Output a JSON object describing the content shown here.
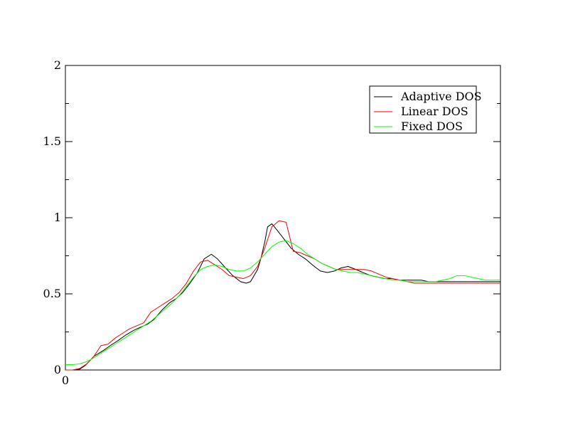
{
  "chart_data": {
    "type": "line",
    "title": "",
    "xlabel": "",
    "ylabel": "",
    "xlim": [
      0,
      1
    ],
    "ylim": [
      0,
      2
    ],
    "y_ticks": [
      0,
      0.5,
      1,
      1.5,
      2
    ],
    "y_tick_labels": [
      "0",
      "0.5",
      "1",
      "1.5",
      "2"
    ],
    "x_ticks": [
      0
    ],
    "x_tick_labels": [
      "0"
    ],
    "grid": false,
    "legend_position": "top-right",
    "series": [
      {
        "name": "Adaptive DOS",
        "color": "#000000",
        "x": [
          0.0,
          0.0164,
          0.0327,
          0.0458,
          0.0655,
          0.0884,
          0.1031,
          0.1195,
          0.1391,
          0.1571,
          0.1718,
          0.1882,
          0.2029,
          0.2209,
          0.2389,
          0.2553,
          0.27,
          0.2864,
          0.3036,
          0.3191,
          0.3355,
          0.3494,
          0.3682,
          0.3846,
          0.4026,
          0.4156,
          0.4255,
          0.4419,
          0.4501,
          0.4582,
          0.4648,
          0.4746,
          0.4861,
          0.5025,
          0.5188,
          0.5352,
          0.5516,
          0.5679,
          0.5859,
          0.6023,
          0.6187,
          0.6334,
          0.6498,
          0.6678,
          0.6841,
          0.7021,
          0.7185,
          0.7349,
          0.7512,
          0.7676,
          0.784,
          0.802,
          0.8183,
          0.8347,
          0.8511,
          0.8674,
          0.8838,
          0.9002,
          0.9165,
          0.9329,
          0.9509,
          0.9673,
          0.9836,
          1.0
        ],
        "values": [
          0.0,
          0.0,
          0.005,
          0.03,
          0.09,
          0.13,
          0.16,
          0.19,
          0.23,
          0.26,
          0.28,
          0.3,
          0.33,
          0.39,
          0.44,
          0.47,
          0.51,
          0.57,
          0.64,
          0.73,
          0.76,
          0.73,
          0.67,
          0.62,
          0.58,
          0.57,
          0.58,
          0.66,
          0.74,
          0.84,
          0.94,
          0.96,
          0.92,
          0.86,
          0.8,
          0.76,
          0.73,
          0.69,
          0.65,
          0.64,
          0.65,
          0.67,
          0.68,
          0.66,
          0.64,
          0.62,
          0.61,
          0.6,
          0.6,
          0.59,
          0.59,
          0.59,
          0.59,
          0.58,
          0.58,
          0.58,
          0.58,
          0.58,
          0.58,
          0.58,
          0.58,
          0.58,
          0.58,
          0.58
        ]
      },
      {
        "name": "Linear DOS",
        "color": "#ff0000",
        "x": [
          0.0,
          0.0164,
          0.0327,
          0.0491,
          0.0655,
          0.0818,
          0.0982,
          0.1146,
          0.1309,
          0.1473,
          0.1637,
          0.18,
          0.1964,
          0.2128,
          0.2291,
          0.2455,
          0.2619,
          0.2782,
          0.2946,
          0.311,
          0.3273,
          0.3437,
          0.3601,
          0.3764,
          0.3928,
          0.4092,
          0.4255,
          0.4419,
          0.4582,
          0.4746,
          0.491,
          0.5073,
          0.5237,
          0.5401,
          0.5564,
          0.5728,
          0.5892,
          0.6055,
          0.6219,
          0.6383,
          0.6546,
          0.671,
          0.6874,
          0.7037,
          0.7201,
          0.7365,
          0.7528,
          0.7692,
          0.7856,
          0.802,
          0.8183,
          0.8347,
          0.8511,
          0.8674,
          0.8838,
          0.9002,
          0.9165,
          0.9329,
          0.9493,
          0.9656,
          0.982,
          1.0
        ],
        "values": [
          0.0,
          0.0,
          0.01,
          0.04,
          0.09,
          0.16,
          0.17,
          0.21,
          0.24,
          0.27,
          0.29,
          0.31,
          0.38,
          0.41,
          0.44,
          0.47,
          0.51,
          0.57,
          0.65,
          0.71,
          0.72,
          0.69,
          0.66,
          0.62,
          0.61,
          0.6,
          0.62,
          0.68,
          0.8,
          0.94,
          0.98,
          0.97,
          0.78,
          0.77,
          0.75,
          0.73,
          0.7,
          0.68,
          0.66,
          0.66,
          0.66,
          0.66,
          0.66,
          0.65,
          0.63,
          0.61,
          0.6,
          0.59,
          0.58,
          0.57,
          0.57,
          0.57,
          0.57,
          0.57,
          0.57,
          0.57,
          0.57,
          0.57,
          0.57,
          0.57,
          0.57,
          0.57
        ]
      },
      {
        "name": "Fixed DOS",
        "color": "#00ff00",
        "x": [
          0.0,
          0.0164,
          0.0327,
          0.0491,
          0.0655,
          0.0818,
          0.0982,
          0.1146,
          0.1309,
          0.1473,
          0.1637,
          0.18,
          0.1964,
          0.2128,
          0.2291,
          0.2455,
          0.2619,
          0.2782,
          0.2946,
          0.311,
          0.3273,
          0.3437,
          0.3601,
          0.3764,
          0.3928,
          0.4092,
          0.4255,
          0.4419,
          0.4582,
          0.4746,
          0.491,
          0.5073,
          0.5237,
          0.5401,
          0.5564,
          0.5728,
          0.5892,
          0.6055,
          0.6219,
          0.6383,
          0.6546,
          0.671,
          0.6874,
          0.7037,
          0.7201,
          0.7365,
          0.7528,
          0.7692,
          0.7856,
          0.802,
          0.8183,
          0.8347,
          0.8511,
          0.8674,
          0.8838,
          0.9002,
          0.9165,
          0.9329,
          0.9493,
          0.9656,
          0.982,
          1.0
        ],
        "values": [
          0.035,
          0.035,
          0.04,
          0.055,
          0.08,
          0.11,
          0.14,
          0.17,
          0.2,
          0.23,
          0.26,
          0.29,
          0.32,
          0.36,
          0.4,
          0.44,
          0.49,
          0.55,
          0.61,
          0.66,
          0.68,
          0.69,
          0.68,
          0.66,
          0.65,
          0.65,
          0.67,
          0.71,
          0.76,
          0.81,
          0.84,
          0.85,
          0.83,
          0.8,
          0.76,
          0.73,
          0.7,
          0.68,
          0.66,
          0.65,
          0.64,
          0.64,
          0.63,
          0.62,
          0.61,
          0.6,
          0.59,
          0.59,
          0.58,
          0.58,
          0.58,
          0.58,
          0.58,
          0.59,
          0.6,
          0.62,
          0.62,
          0.61,
          0.6,
          0.59,
          0.59,
          0.59
        ]
      }
    ]
  }
}
